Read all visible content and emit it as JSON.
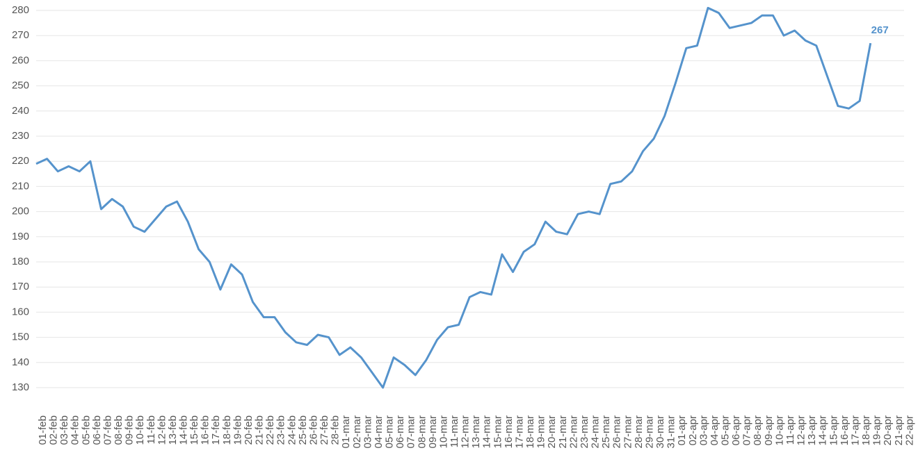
{
  "chart_data": {
    "type": "line",
    "color": "#5593cc",
    "grid": true,
    "categories": [
      "01-feb",
      "02-feb",
      "03-feb",
      "04-feb",
      "05-feb",
      "06-feb",
      "07-feb",
      "08-feb",
      "09-feb",
      "10-feb",
      "11-feb",
      "12-feb",
      "13-feb",
      "14-feb",
      "15-feb",
      "16-feb",
      "17-feb",
      "18-feb",
      "19-feb",
      "20-feb",
      "21-feb",
      "22-feb",
      "23-feb",
      "24-feb",
      "25-feb",
      "26-feb",
      "27-feb",
      "28-feb",
      "01-mar",
      "02-mar",
      "03-mar",
      "04-mar",
      "05-mar",
      "06-mar",
      "07-mar",
      "08-mar",
      "09-mar",
      "10-mar",
      "11-mar",
      "12-mar",
      "13-mar",
      "14-mar",
      "15-mar",
      "16-mar",
      "17-mar",
      "18-mar",
      "19-mar",
      "20-mar",
      "21-mar",
      "22-mar",
      "23-mar",
      "24-mar",
      "25-mar",
      "26-mar",
      "27-mar",
      "28-mar",
      "29-mar",
      "30-mar",
      "31-mar",
      "01-apr",
      "02-apr",
      "03-apr",
      "04-apr",
      "05-apr",
      "06-apr",
      "07-apr",
      "08-apr",
      "09-apr",
      "10-apr",
      "11-apr",
      "12-apr",
      "13-apr",
      "14-apr",
      "15-apr",
      "16-apr",
      "17-apr",
      "18-apr",
      "19-apr",
      "20-apr",
      "21-apr",
      "22-apr"
    ],
    "values": [
      219,
      221,
      216,
      218,
      216,
      220,
      201,
      205,
      202,
      194,
      192,
      197,
      202,
      204,
      196,
      185,
      180,
      169,
      179,
      175,
      164,
      158,
      158,
      152,
      148,
      147,
      151,
      150,
      143,
      146,
      142,
      136,
      130,
      142,
      139,
      135,
      141,
      149,
      154,
      155,
      166,
      168,
      167,
      183,
      176,
      184,
      187,
      196,
      192,
      191,
      199,
      200,
      199,
      211,
      212,
      216,
      224,
      229,
      238,
      251,
      265,
      266,
      281,
      279,
      273,
      274,
      275,
      278,
      278,
      270,
      272,
      268,
      266,
      254,
      242,
      241,
      244,
      267,
      null,
      null,
      null
    ],
    "ylim": [
      130,
      280
    ],
    "yticks": [
      130,
      140,
      150,
      160,
      170,
      180,
      190,
      200,
      210,
      220,
      230,
      240,
      250,
      260,
      270,
      280
    ]
  }
}
